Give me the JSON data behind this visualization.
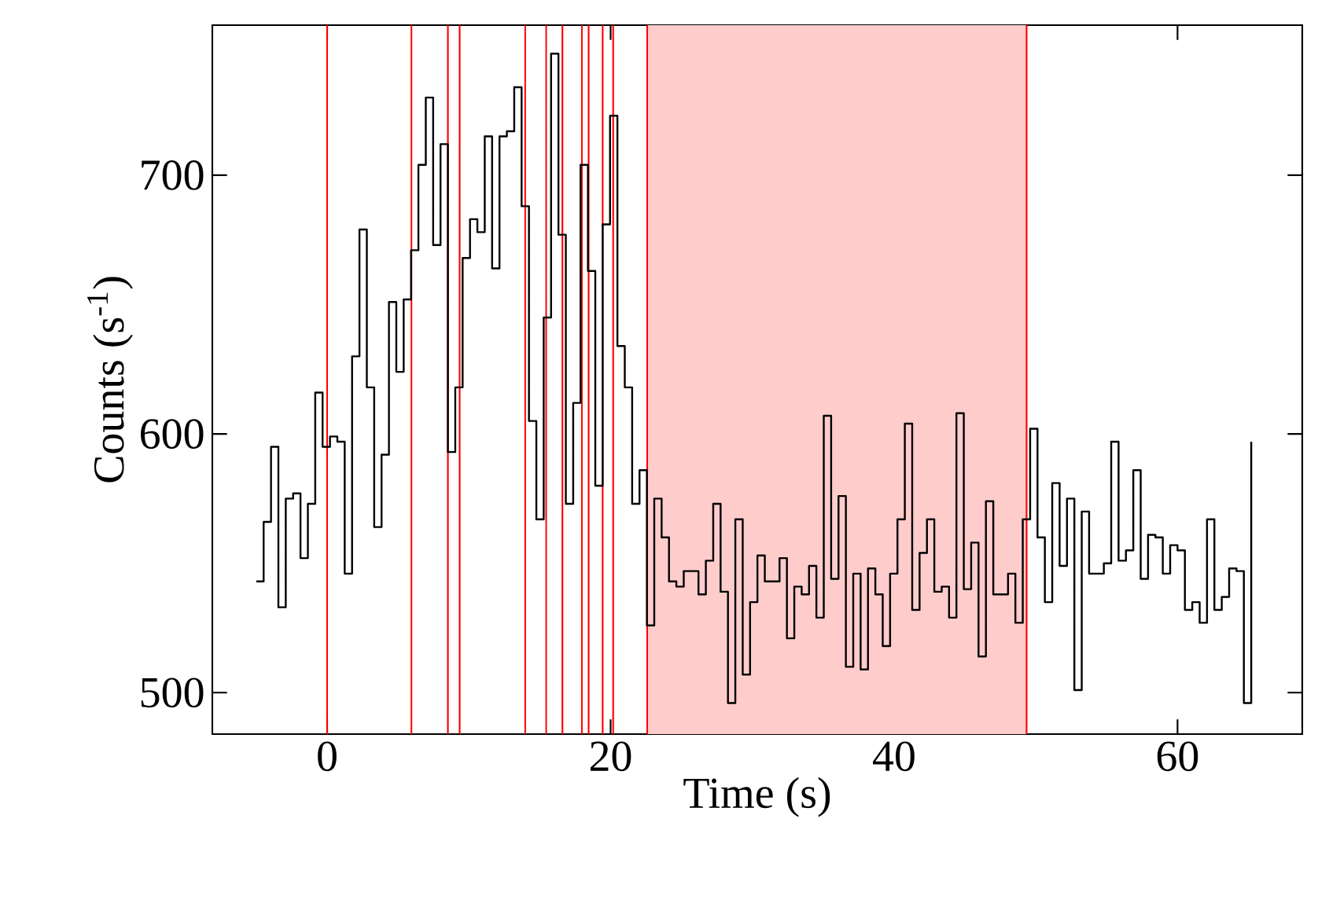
{
  "chart_data": {
    "type": "step",
    "xlabel": "Time (s)",
    "ylabel": "Counts (s$^{-1}$)",
    "xlim": [
      -8.1,
      68.8
    ],
    "ylim": [
      484,
      758
    ],
    "xticks": [
      0,
      20,
      40,
      60
    ],
    "yticks": [
      500,
      600,
      700
    ],
    "x": [
      -5,
      -4.48,
      -3.96,
      -3.44,
      -2.92,
      -2.4,
      -1.88,
      -1.36,
      -0.84,
      -0.32,
      0.2,
      0.72,
      1.24,
      1.76,
      2.28,
      2.8,
      3.32,
      3.84,
      4.36,
      4.88,
      5.4,
      5.92,
      6.44,
      6.96,
      7.48,
      8,
      8.52,
      9.04,
      9.56,
      10.08,
      10.6,
      11.12,
      11.64,
      12.16,
      12.68,
      13.2,
      13.72,
      14.24,
      14.76,
      15.28,
      15.8,
      16.32,
      16.84,
      17.36,
      17.88,
      18.4,
      18.92,
      19.44,
      19.96,
      20.48,
      21,
      21.52,
      22.04,
      22.56,
      23.08,
      23.6,
      24.12,
      24.64,
      25.16,
      25.68,
      26.2,
      26.72,
      27.24,
      27.76,
      28.28,
      28.8,
      29.32,
      29.84,
      30.36,
      30.88,
      31.4,
      31.92,
      32.44,
      32.96,
      33.48,
      34,
      34.52,
      35.04,
      35.56,
      36.08,
      36.6,
      37.12,
      37.64,
      38.16,
      38.68,
      39.2,
      39.72,
      40.24,
      40.76,
      41.28,
      41.8,
      42.32,
      42.84,
      43.36,
      43.88,
      44.4,
      44.92,
      45.44,
      45.96,
      46.48,
      47,
      47.52,
      48.04,
      48.56,
      49.08,
      49.6,
      50.12,
      50.64,
      51.16,
      51.68,
      52.2,
      52.72,
      53.24,
      53.76,
      54.28,
      54.8,
      55.32,
      55.84,
      56.36,
      56.88,
      57.4,
      57.92,
      58.44,
      58.96,
      59.48,
      60,
      60.52,
      61.04,
      61.56,
      62.08,
      62.6,
      63.12,
      63.64,
      64.16,
      64.68,
      65.2
    ],
    "series": [
      {
        "color": "#000000",
        "values": [
          543,
          566,
          595,
          533,
          575,
          577,
          552,
          573,
          616,
          595,
          599,
          597,
          546,
          630,
          679,
          618,
          564,
          592,
          651,
          624,
          652,
          671,
          704,
          730,
          673,
          712,
          593,
          618,
          668,
          683,
          678,
          715,
          664,
          715,
          717,
          734,
          688,
          605,
          567,
          645,
          747,
          677,
          573,
          612,
          704,
          663,
          580,
          681,
          723,
          634,
          618,
          573,
          586,
          526,
          575,
          560,
          543,
          541,
          547,
          547,
          538,
          551,
          573,
          539,
          496,
          567,
          507,
          535,
          553,
          543,
          543,
          552,
          521,
          541,
          538,
          549,
          529,
          607,
          544,
          576,
          510,
          546,
          509,
          548,
          538,
          518,
          546,
          567,
          604,
          532,
          554,
          567,
          539,
          541,
          529,
          608,
          540,
          558,
          514,
          574,
          538,
          538,
          546,
          527,
          567,
          602,
          560,
          535,
          581,
          549,
          575,
          501,
          570,
          546,
          546,
          550,
          597,
          551,
          555,
          586,
          544,
          561,
          560,
          546,
          557,
          555,
          532,
          535,
          527,
          567,
          532,
          537,
          548,
          547,
          496,
          597
        ]
      }
    ],
    "bands": [
      {
        "axis": "x",
        "from": 22.58,
        "to": 49.35,
        "color": "#ffcccc"
      }
    ],
    "ref_lines": [
      {
        "axis": "x",
        "value": 0,
        "color": "#ff0000"
      },
      {
        "axis": "x",
        "value": 5.95,
        "color": "#ff0000"
      },
      {
        "axis": "x",
        "value": 8.52,
        "color": "#ff0000"
      },
      {
        "axis": "x",
        "value": 9.35,
        "color": "#ff0000"
      },
      {
        "axis": "x",
        "value": 13.97,
        "color": "#ff0000"
      },
      {
        "axis": "x",
        "value": 15.45,
        "color": "#ff0000"
      },
      {
        "axis": "x",
        "value": 16.6,
        "color": "#ff0000"
      },
      {
        "axis": "x",
        "value": 17.97,
        "color": "#ff0000"
      },
      {
        "axis": "x",
        "value": 18.45,
        "color": "#ff0000"
      },
      {
        "axis": "x",
        "value": 19.44,
        "color": "#ff0000"
      },
      {
        "axis": "x",
        "value": 20.18,
        "color": "#ff0000"
      },
      {
        "axis": "x",
        "value": 22.58,
        "color": "#ff0000"
      },
      {
        "axis": "x",
        "value": 49.35,
        "color": "#ff0000"
      }
    ]
  }
}
